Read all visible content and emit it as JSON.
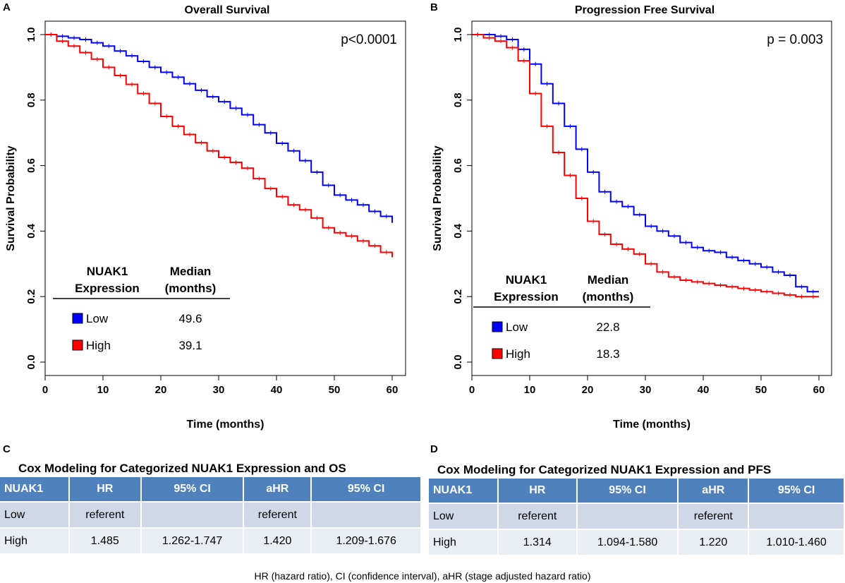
{
  "colors": {
    "low": "#0000ff",
    "high": "#ff0000",
    "header_bg": "#4f81bd",
    "row1": "#d0d8e8",
    "row2": "#e9edf4"
  },
  "chart_data": [
    {
      "panel": "A",
      "type": "line",
      "title": "Overall Survival",
      "xlabel": "Time (months)",
      "ylabel": "Survival Probability",
      "xlim": [
        0,
        60
      ],
      "ylim": [
        0,
        1
      ],
      "xticks": [
        "0",
        "10",
        "20",
        "30",
        "40",
        "50",
        "60"
      ],
      "yticks": [
        "0.0",
        "0.2",
        "0.4",
        "0.6",
        "0.8",
        "1.0"
      ],
      "pvalue": "p<0.0001",
      "legend": {
        "header1": "NUAK1",
        "header2": "Expression",
        "header3": "Median",
        "header4": "(months)",
        "rows": [
          {
            "label": "Low",
            "median": "49.6"
          },
          {
            "label": "High",
            "median": "39.1"
          }
        ]
      },
      "series": [
        {
          "name": "Low",
          "color": "#0000ff",
          "x": [
            0,
            2,
            4,
            6,
            8,
            10,
            12,
            14,
            16,
            18,
            20,
            22,
            24,
            26,
            28,
            30,
            32,
            34,
            36,
            38,
            40,
            42,
            44,
            46,
            48,
            50,
            52,
            54,
            56,
            58,
            60
          ],
          "y": [
            1.0,
            0.995,
            0.99,
            0.985,
            0.975,
            0.965,
            0.95,
            0.935,
            0.918,
            0.9,
            0.885,
            0.87,
            0.85,
            0.83,
            0.81,
            0.795,
            0.775,
            0.755,
            0.725,
            0.7,
            0.668,
            0.645,
            0.615,
            0.58,
            0.54,
            0.51,
            0.495,
            0.48,
            0.46,
            0.445,
            0.425
          ]
        },
        {
          "name": "High",
          "color": "#ff0000",
          "x": [
            0,
            2,
            4,
            6,
            8,
            10,
            12,
            14,
            16,
            18,
            20,
            22,
            24,
            26,
            28,
            30,
            32,
            34,
            36,
            38,
            40,
            42,
            44,
            46,
            48,
            50,
            52,
            54,
            56,
            58,
            60
          ],
          "y": [
            1.0,
            0.98,
            0.965,
            0.945,
            0.925,
            0.9,
            0.875,
            0.848,
            0.82,
            0.79,
            0.75,
            0.72,
            0.695,
            0.67,
            0.645,
            0.625,
            0.61,
            0.592,
            0.56,
            0.53,
            0.505,
            0.48,
            0.465,
            0.44,
            0.41,
            0.395,
            0.385,
            0.37,
            0.355,
            0.335,
            0.32
          ]
        }
      ]
    },
    {
      "panel": "B",
      "type": "line",
      "title": "Progression Free Survival",
      "xlabel": "Time (months)",
      "ylabel": "Survival Probability",
      "xlim": [
        0,
        60
      ],
      "ylim": [
        0,
        1
      ],
      "xticks": [
        "0",
        "10",
        "20",
        "30",
        "40",
        "50",
        "60"
      ],
      "yticks": [
        "0.0",
        "0.2",
        "0.4",
        "0.6",
        "0.8",
        "1.0"
      ],
      "pvalue": "p = 0.003",
      "legend": {
        "header1": "NUAK1",
        "header2": "Expression",
        "header3": "Median",
        "header4": "(months)",
        "rows": [
          {
            "label": "Low",
            "median": "22.8"
          },
          {
            "label": "High",
            "median": "18.3"
          }
        ]
      },
      "series": [
        {
          "name": "Low",
          "color": "#0000ff",
          "x": [
            0,
            2,
            4,
            6,
            8,
            10,
            12,
            14,
            16,
            18,
            20,
            22,
            24,
            26,
            28,
            30,
            32,
            34,
            36,
            38,
            40,
            42,
            44,
            46,
            48,
            50,
            52,
            54,
            56,
            58,
            60
          ],
          "y": [
            1.0,
            1.0,
            0.995,
            0.985,
            0.955,
            0.91,
            0.85,
            0.79,
            0.72,
            0.65,
            0.58,
            0.52,
            0.49,
            0.475,
            0.45,
            0.415,
            0.4,
            0.385,
            0.365,
            0.35,
            0.34,
            0.335,
            0.32,
            0.31,
            0.3,
            0.29,
            0.275,
            0.265,
            0.23,
            0.215,
            0.215
          ]
        },
        {
          "name": "High",
          "color": "#ff0000",
          "x": [
            0,
            2,
            4,
            6,
            8,
            10,
            12,
            14,
            16,
            18,
            20,
            22,
            24,
            26,
            28,
            30,
            32,
            34,
            36,
            38,
            40,
            42,
            44,
            46,
            48,
            50,
            52,
            54,
            56,
            58,
            60
          ],
          "y": [
            1.0,
            0.99,
            0.98,
            0.96,
            0.92,
            0.82,
            0.72,
            0.64,
            0.57,
            0.5,
            0.43,
            0.39,
            0.36,
            0.345,
            0.33,
            0.3,
            0.275,
            0.26,
            0.25,
            0.245,
            0.24,
            0.235,
            0.23,
            0.225,
            0.22,
            0.215,
            0.21,
            0.205,
            0.2,
            0.2,
            0.2
          ]
        }
      ]
    }
  ],
  "tables": {
    "os": {
      "panel": "C",
      "title": "Cox Modeling for Categorized NUAK1 Expression and OS",
      "headers": [
        "NUAK1",
        "HR",
        "95% CI",
        "aHR",
        "95% CI"
      ],
      "rows": [
        [
          "Low",
          "referent",
          "",
          "referent",
          ""
        ],
        [
          "High",
          "1.485",
          "1.262-1.747",
          "1.420",
          "1.209-1.676"
        ]
      ]
    },
    "pfs": {
      "panel": "D",
      "title": "Cox Modeling for Categorized NUAK1 Expression and PFS",
      "headers": [
        "NUAK1",
        "HR",
        "95% CI",
        "aHR",
        "95% CI"
      ],
      "rows": [
        [
          "Low",
          "referent",
          "",
          "referent",
          ""
        ],
        [
          "High",
          "1.314",
          "1.094-1.580",
          "1.220",
          "1.010-1.460"
        ]
      ]
    }
  },
  "footnote": "HR (hazard ratio), CI (confidence interval), aHR (stage adjusted hazard ratio)"
}
